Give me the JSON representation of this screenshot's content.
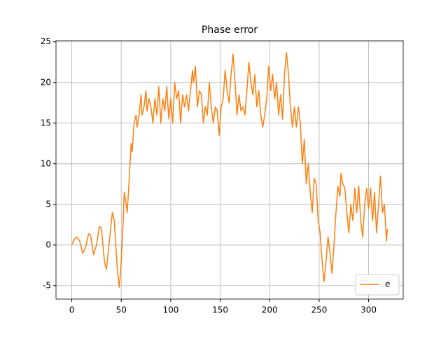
{
  "chart_data": {
    "type": "line",
    "title": "Phase error",
    "x": [
      0,
      3,
      5,
      8,
      11,
      14,
      17,
      19,
      22,
      25,
      28,
      30,
      33,
      35,
      38,
      41,
      43,
      46,
      48,
      50,
      52,
      53,
      55,
      56,
      58,
      60,
      61,
      63,
      65,
      66,
      68,
      70,
      71,
      73,
      75,
      76,
      78,
      80,
      82,
      84,
      86,
      88,
      90,
      92,
      94,
      96,
      98,
      100,
      102,
      104,
      106,
      108,
      110,
      112,
      114,
      116,
      118,
      120,
      122,
      123,
      125,
      127,
      129,
      131,
      133,
      135,
      137,
      139,
      141,
      143,
      145,
      147,
      149,
      151,
      153,
      155,
      157,
      159,
      161,
      163,
      165,
      167,
      169,
      171,
      173,
      175,
      177,
      179,
      181,
      183,
      185,
      187,
      189,
      191,
      193,
      195,
      197,
      199,
      201,
      203,
      205,
      207,
      209,
      211,
      213,
      215,
      217,
      219,
      221,
      223,
      225,
      227,
      229,
      231,
      233,
      235,
      237,
      239,
      241,
      243,
      245,
      247,
      249,
      251,
      253,
      255,
      257,
      259,
      261,
      263,
      265,
      267,
      269,
      271,
      272,
      274,
      276,
      278,
      280,
      282,
      284,
      286,
      288,
      290,
      292,
      294,
      296,
      298,
      300,
      302,
      304,
      306,
      308,
      310,
      312,
      314,
      316,
      318,
      319
    ],
    "series": [
      {
        "name": "e",
        "color": "#ff7f0e",
        "values": [
          0,
          0.8,
          1.0,
          0.5,
          -1.0,
          -0.3,
          1.4,
          1.2,
          -1.2,
          0,
          2.3,
          2,
          -2,
          -3,
          0.5,
          4,
          3,
          -3,
          -5.2,
          -2,
          3,
          6.5,
          5,
          4,
          8,
          12.5,
          11.5,
          15,
          16,
          14.5,
          16,
          18.5,
          16,
          17,
          19,
          16.5,
          18,
          17,
          15,
          18,
          16,
          19.5,
          15,
          18,
          16.5,
          19.5,
          15.5,
          18,
          15,
          20,
          18,
          19,
          15,
          18.5,
          17,
          18.5,
          16.5,
          19,
          21.5,
          20,
          22,
          17,
          19,
          18.5,
          15,
          17,
          16,
          20,
          17,
          15,
          17,
          16.5,
          13.5,
          17,
          18,
          21.5,
          19,
          17.5,
          21,
          23.5,
          20,
          16,
          18.5,
          16.5,
          17,
          16,
          19,
          22.5,
          20,
          18.5,
          21,
          17,
          19,
          16,
          14.5,
          16,
          18,
          22,
          19,
          21,
          18,
          20,
          16,
          18.5,
          15.5,
          21,
          23.7,
          21,
          17,
          14.5,
          17,
          14.5,
          17,
          15,
          10,
          13,
          7.5,
          10,
          6.5,
          4,
          8.2,
          7.5,
          3,
          1.5,
          -2,
          -4.5,
          -2,
          1,
          -1,
          -3.5,
          0,
          4,
          7.2,
          6,
          8.8,
          7.5,
          7,
          4,
          1.5,
          5,
          3,
          7,
          4,
          7.3,
          3,
          1,
          5,
          7,
          4.5,
          7,
          3,
          6.5,
          1.5,
          5,
          8.5,
          4,
          5,
          0.5,
          2
        ]
      }
    ],
    "xlim": [
      -15.95,
      334.95
    ],
    "xticks": [
      0,
      50,
      100,
      150,
      200,
      250,
      300
    ],
    "ylim": [
      -6.65,
      25.15
    ],
    "yticks": [
      -5,
      0,
      5,
      10,
      15,
      20,
      25
    ],
    "grid": true,
    "legend": "lower right"
  }
}
